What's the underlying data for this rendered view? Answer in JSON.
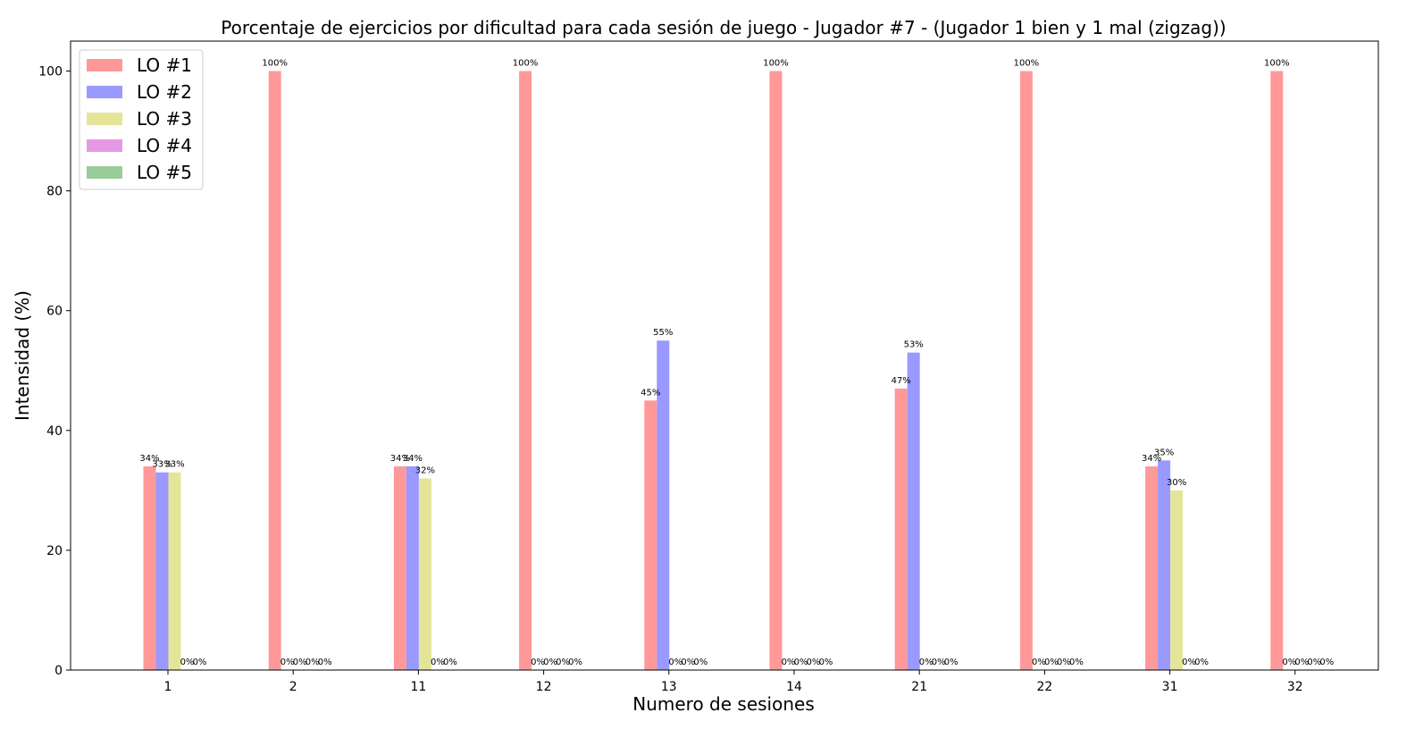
{
  "chart_data": {
    "type": "bar",
    "title": "Porcentaje de ejercicios por dificultad para cada sesión de juego - Jugador #7 - (Jugador 1 bien y 1 mal (zigzag))",
    "xlabel": "Numero de sesiones",
    "ylabel": "Intensidad (%)",
    "categories": [
      "1",
      "2",
      "11",
      "12",
      "13",
      "14",
      "21",
      "22",
      "31",
      "32"
    ],
    "ylim": [
      0,
      105
    ],
    "yticks": [
      "0",
      "20",
      "40",
      "60",
      "80",
      "100"
    ],
    "grid": false,
    "legend_position": "top-left",
    "series": [
      {
        "name": "LO #1",
        "color": "#ff9999",
        "values": [
          34,
          100,
          34,
          100,
          45,
          100,
          47,
          100,
          34,
          100
        ],
        "labels": [
          "34%",
          "100%",
          "34%",
          "100%",
          "45%",
          "100%",
          "47%",
          "100%",
          "34%",
          "100%"
        ]
      },
      {
        "name": "LO #2",
        "color": "#9999ff",
        "values": [
          33,
          0,
          34,
          0,
          55,
          0,
          53,
          0,
          35,
          0
        ],
        "labels": [
          "33%",
          "0%",
          "34%",
          "0%",
          "55%",
          "0%",
          "53%",
          "0%",
          "35%",
          "0%"
        ]
      },
      {
        "name": "LO #3",
        "color": "#e5e599",
        "values": [
          33,
          0,
          32,
          0,
          0,
          0,
          0,
          0,
          30,
          0
        ],
        "labels": [
          "33%",
          "0%",
          "32%",
          "0%",
          "0%",
          "0%",
          "0%",
          "0%",
          "30%",
          "0%"
        ]
      },
      {
        "name": "LO #4",
        "color": "#e599e5",
        "values": [
          0,
          0,
          0,
          0,
          0,
          0,
          0,
          0,
          0,
          0
        ],
        "labels": [
          "0%",
          "0%",
          "0%",
          "0%",
          "0%",
          "0%",
          "0%",
          "0%",
          "0%",
          "0%"
        ]
      },
      {
        "name": "LO #5",
        "color": "#99cc99",
        "values": [
          0,
          0,
          0,
          0,
          0,
          0,
          0,
          0,
          0,
          0
        ],
        "labels": [
          "0%",
          "0%",
          "0%",
          "0%",
          "0%",
          "0%",
          "0%",
          "0%",
          "0%",
          "0%"
        ]
      }
    ]
  }
}
